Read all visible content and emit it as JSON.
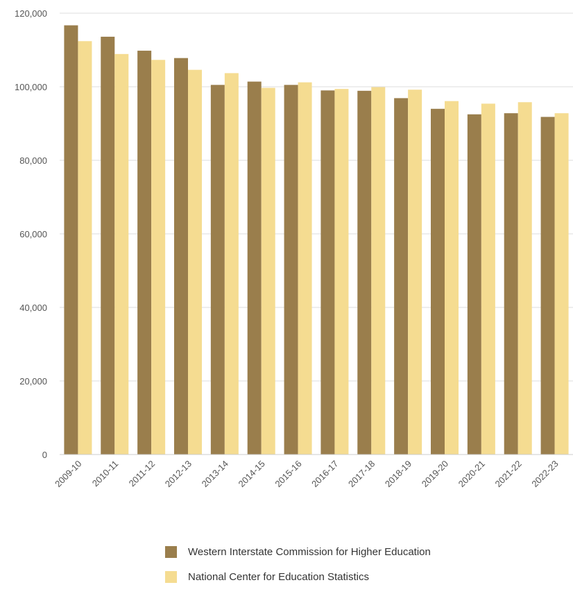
{
  "chart_data": {
    "type": "bar",
    "title": "",
    "xlabel": "",
    "ylabel": "",
    "ylim": [
      0,
      120000
    ],
    "yticks": [
      0,
      20000,
      40000,
      60000,
      80000,
      100000,
      120000
    ],
    "ytick_labels": [
      "0",
      "20,000",
      "40,000",
      "60,000",
      "80,000",
      "100,000",
      "120,000"
    ],
    "grid": true,
    "legend_position": "bottom",
    "categories": [
      "2009-10",
      "2010-11",
      "2011-12",
      "2012-13",
      "2013-14",
      "2014-15",
      "2015-16",
      "2016-17",
      "2017-18",
      "2018-19",
      "2019-20",
      "2020-21",
      "2021-22",
      "2022-23"
    ],
    "series": [
      {
        "name": "Western Interstate Commission for Higher Education",
        "color": "#9a7e4c",
        "values": [
          116700,
          113600,
          109800,
          107800,
          100500,
          101400,
          100500,
          99000,
          98900,
          96900,
          94000,
          92500,
          92800,
          91800
        ]
      },
      {
        "name": "National Center for Education Statistics",
        "color": "#f5dc91",
        "values": [
          112400,
          108900,
          107300,
          104600,
          103700,
          99700,
          101200,
          99400,
          99900,
          99200,
          96100,
          95400,
          95800,
          92800
        ]
      }
    ]
  }
}
